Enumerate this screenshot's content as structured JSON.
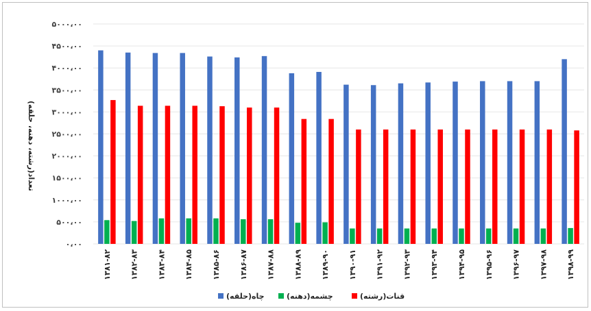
{
  "chart_data": {
    "type": "bar",
    "ylabel": "تعداد(رشته، دهنه، حلقه)",
    "xlabel": "",
    "ylim": [
      0,
      5000
    ],
    "yticks": [
      "۰،۰۰",
      "۵۰۰،۰۰",
      "۱۰۰۰،۰۰",
      "۱۵۰۰،۰۰",
      "۲۰۰۰،۰۰",
      "۲۵۰۰،۰۰",
      "۳۰۰۰،۰۰",
      "۳۵۰۰،۰۰",
      "۴۰۰۰،۰۰",
      "۴۵۰۰،۰۰",
      "۵۰۰۰،۰۰"
    ],
    "categories": [
      "۱۳۸۱-۸۲",
      "۱۳۸۲-۸۳",
      "۱۳۸۳-۸۴",
      "۱۳۸۴-۸۵",
      "۱۳۸۵-۸۶",
      "۱۳۸۶-۸۷",
      "۱۳۸۷-۸۸",
      "۱۳۸۸-۸۹",
      "۱۳۸۹-۹۰",
      "۱۳۹۰-۹۱",
      "۱۳۹۱-۹۲",
      "۱۳۹۲-۹۳",
      "۱۳۹۳-۹۴",
      "۱۳۹۴-۹۵",
      "۱۳۹۵-۹۶",
      "۱۳۹۶-۹۷",
      "۱۳۹۷-۹۸",
      "۱۳۹۸-۹۹"
    ],
    "series": [
      {
        "name": "چاه(حلقه)",
        "color": "#4472c4",
        "values": [
          4400,
          4350,
          4340,
          4340,
          4260,
          4240,
          4270,
          3880,
          3910,
          3620,
          3610,
          3650,
          3670,
          3690,
          3700,
          3700,
          3700,
          4200
        ]
      },
      {
        "name": "چشمه(دهنه)",
        "color": "#00b050",
        "values": [
          540,
          520,
          580,
          580,
          580,
          560,
          560,
          480,
          490,
          350,
          350,
          350,
          350,
          350,
          350,
          350,
          350,
          360
        ]
      },
      {
        "name": "قنات(رشته)",
        "color": "#ff0000",
        "values": [
          3270,
          3140,
          3140,
          3140,
          3130,
          3100,
          3100,
          2840,
          2840,
          2600,
          2600,
          2600,
          2600,
          2600,
          2600,
          2600,
          2600,
          2580
        ]
      }
    ],
    "legend_position": "bottom",
    "grid": true
  }
}
